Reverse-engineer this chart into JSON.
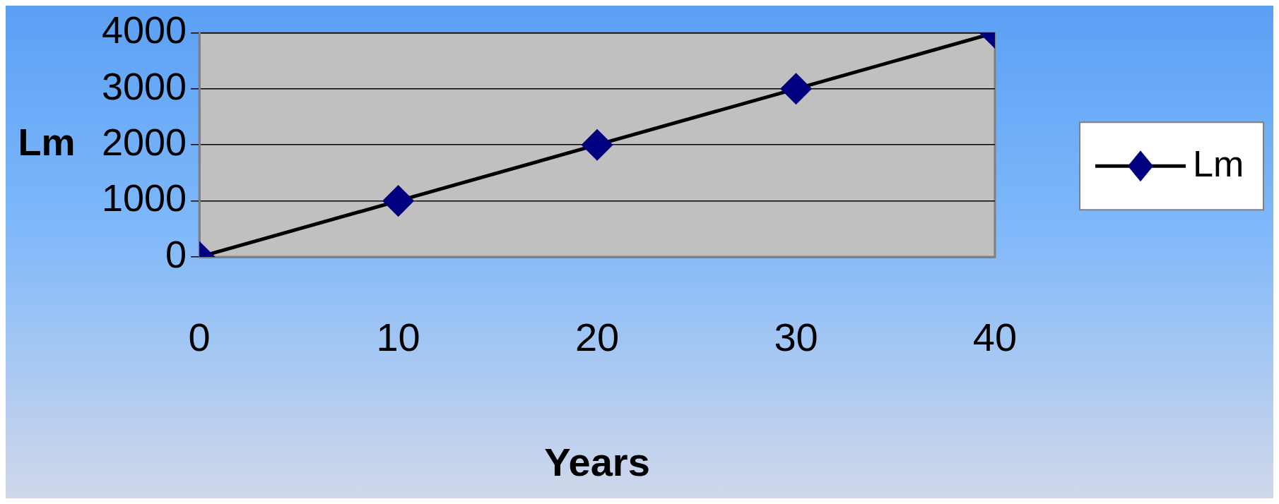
{
  "chart_data": {
    "type": "line",
    "xlabel": "Years",
    "ylabel": "Lm",
    "x": [
      0,
      10,
      20,
      30,
      40
    ],
    "series": [
      {
        "name": "Lm",
        "color": "#000080",
        "values": [
          0,
          1000,
          2000,
          3000,
          4000
        ]
      }
    ],
    "xlim": [
      0,
      40
    ],
    "xticks": [
      0,
      10,
      20,
      30,
      40
    ],
    "ylim": [
      0,
      4000
    ],
    "yticks": [
      0,
      1000,
      2000,
      3000,
      4000
    ],
    "grid": "y",
    "legend": "right",
    "marker": "diamond",
    "line_style": "solid"
  }
}
